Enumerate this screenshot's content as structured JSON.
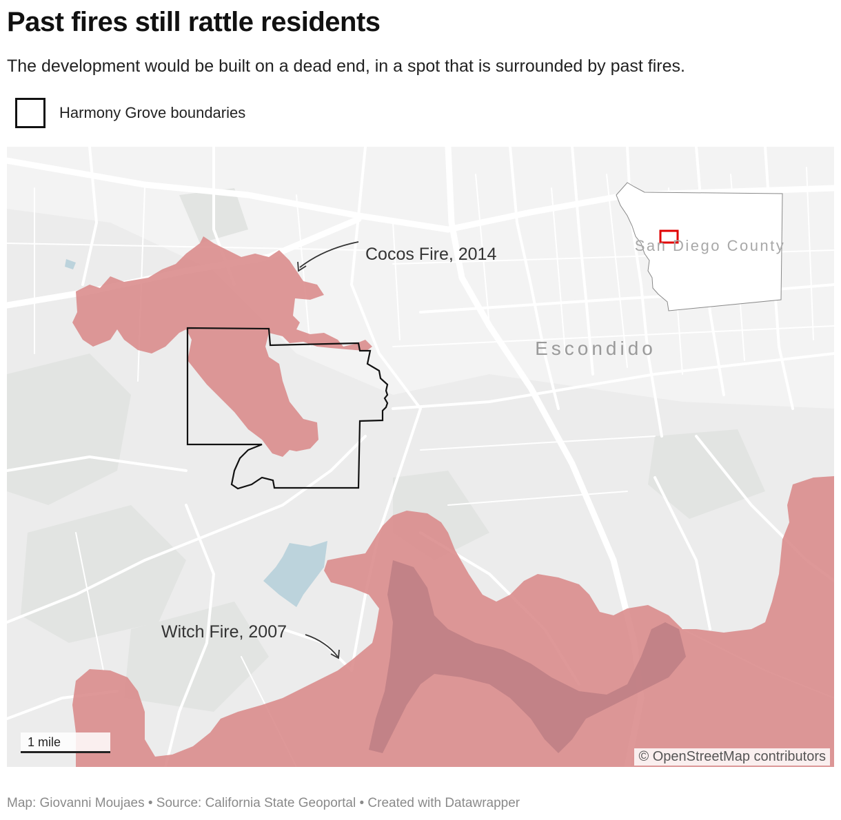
{
  "title": "Past fires still rattle residents",
  "subtitle": "The development would be built on a dead end, in a spot that is surrounded by past fires.",
  "legend": {
    "label": "Harmony Grove boundaries"
  },
  "map": {
    "labels": {
      "cocos": "Cocos Fire, 2014",
      "witch": "Witch Fire, 2007",
      "city": "Escondido",
      "county": "San Diego County"
    },
    "scale_label": "1 mile",
    "attribution": "© OpenStreetMap contributors",
    "colors": {
      "fire": "#d98a8a",
      "land": "#ececec",
      "road": "#ffffff",
      "water": "#bcd3dc",
      "boundary": "#111111",
      "locator_marker": "#e00000"
    }
  },
  "footer": "Map: Giovanni Moujaes • Source: California State Geoportal • Created with Datawrapper"
}
